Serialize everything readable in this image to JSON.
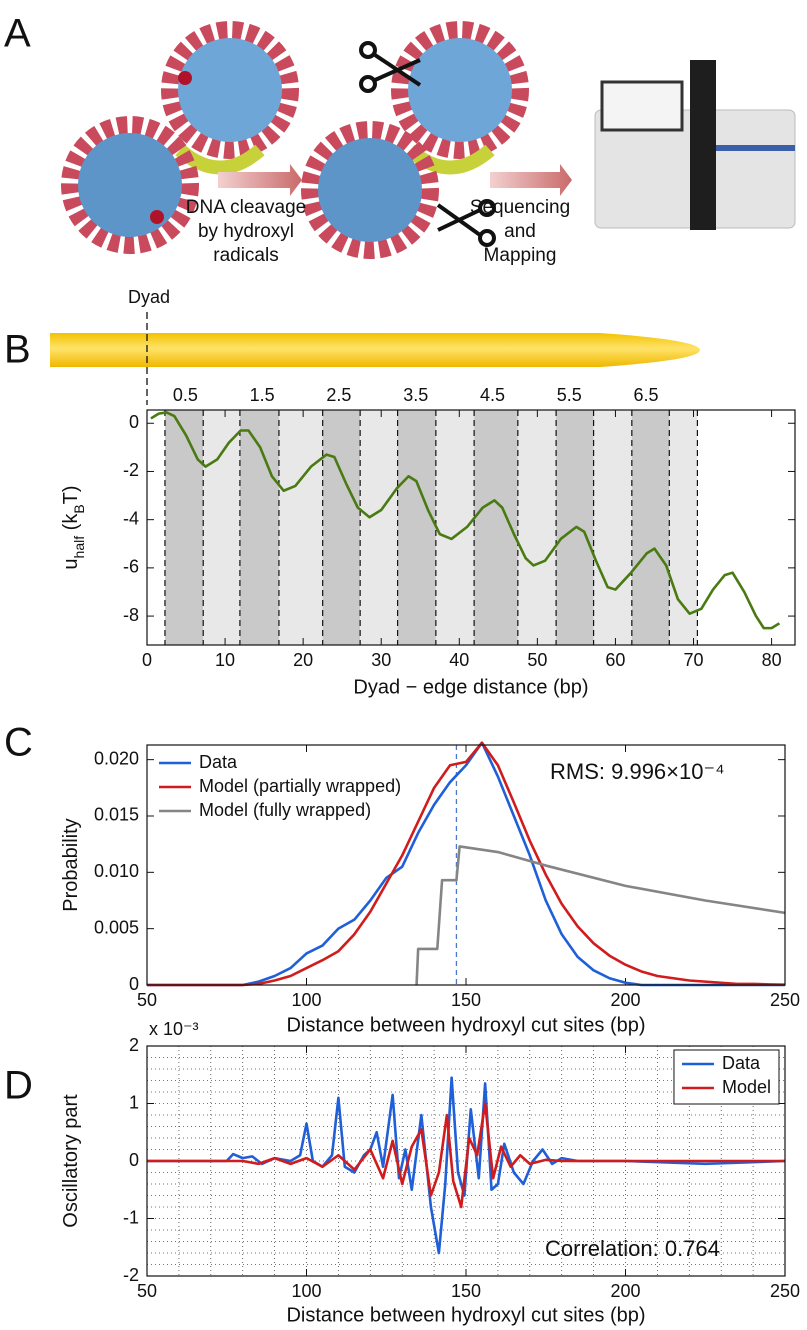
{
  "illustration": {
    "panel": "A",
    "captions": [
      [
        "DNA cleavage",
        "by hydroxyl",
        "radicals"
      ],
      [
        "Sequencing",
        "and",
        "Mapping"
      ]
    ]
  },
  "chart_data": [
    {
      "type": "line",
      "panel": "B",
      "marker_label": "Dyad",
      "xlabel": "Dyad − edge distance (bp)",
      "ylabel": [
        {
          "text": "u"
        },
        {
          "text": "half",
          "sub": true
        },
        {
          "text": "  (k"
        },
        {
          "text": "B",
          "sub": true
        },
        {
          "text": "T)"
        }
      ],
      "xlim": [
        0,
        83
      ],
      "xticks": [
        0,
        10,
        20,
        30,
        40,
        50,
        60,
        70,
        80
      ],
      "ylim": [
        -9.2,
        0.55
      ],
      "yticks": [
        -8,
        -6,
        -4,
        -2,
        0
      ],
      "x2lim": [
        0,
        8.44
      ],
      "x2ticks": [
        0.5,
        1.5,
        2.5,
        3.5,
        4.5,
        5.5,
        6.5
      ],
      "band_edges": [
        2.3,
        7.2,
        11.9,
        16.9,
        22.5,
        27.3,
        32.1,
        37.0,
        41.9,
        47.5,
        52.4,
        57.2,
        62.1,
        66.9,
        70.5
      ],
      "band_colors": [
        "#c9c9c9",
        "#e8e8e8"
      ],
      "x": [
        0.5,
        1.5,
        2.5,
        3.5,
        5,
        6.5,
        7.5,
        9,
        10.5,
        12,
        13,
        14.5,
        16,
        17.5,
        19,
        21,
        23,
        24,
        25.5,
        27,
        28.5,
        30,
        32,
        33.5,
        34.5,
        36,
        37.5,
        39,
        41,
        43,
        44.5,
        45.5,
        47,
        48.5,
        49.5,
        51,
        53,
        55,
        56,
        57.5,
        59,
        60,
        62,
        64,
        65,
        66.5,
        68,
        69.5,
        71,
        72.5,
        74,
        75,
        76.5,
        78,
        79,
        80,
        81
      ],
      "series": [
        {
          "color": "#4a7a12",
          "values": [
            0.2,
            0.4,
            0.45,
            0.3,
            -0.5,
            -1.5,
            -1.8,
            -1.5,
            -0.8,
            -0.3,
            -0.3,
            -1.0,
            -2.2,
            -2.8,
            -2.6,
            -1.8,
            -1.3,
            -1.4,
            -2.5,
            -3.5,
            -3.9,
            -3.6,
            -2.7,
            -2.2,
            -2.4,
            -3.6,
            -4.6,
            -4.8,
            -4.3,
            -3.5,
            -3.2,
            -3.5,
            -4.6,
            -5.6,
            -5.9,
            -5.7,
            -4.8,
            -4.3,
            -4.5,
            -5.7,
            -6.8,
            -6.9,
            -6.2,
            -5.4,
            -5.2,
            -5.9,
            -7.3,
            -7.9,
            -7.7,
            -6.9,
            -6.3,
            -6.2,
            -7.0,
            -8.0,
            -8.5,
            -8.5,
            -8.3
          ]
        }
      ]
    },
    {
      "type": "line",
      "panel": "C",
      "xlabel": "Distance between hydroxyl cut sites (bp)",
      "ylabel": [
        {
          "text": "Probability"
        }
      ],
      "xlim": [
        50,
        250
      ],
      "xticks": [
        50,
        100,
        150,
        200,
        250
      ],
      "ylim": [
        0,
        0.0213
      ],
      "yticks": [
        0,
        0.005,
        {
          "value": 0.01,
          "label": "0.010"
        },
        0.015,
        {
          "value": 0.02,
          "label": "0.020"
        }
      ],
      "vline": 147,
      "vline_color": "#4a78c8",
      "annotation": "RMS: 9.996×10⁻⁴",
      "legend": "upper left",
      "series": [
        {
          "name": "Data",
          "color": "#1f5fd8",
          "x": [
            50,
            80,
            85,
            90,
            95,
            100,
            105,
            110,
            115,
            120,
            125,
            130,
            135,
            140,
            145,
            150,
            155,
            160,
            165,
            170,
            175,
            180,
            185,
            190,
            195,
            200,
            205,
            250
          ],
          "values": [
            0,
            0,
            0.0003,
            0.0008,
            0.0015,
            0.0028,
            0.0035,
            0.005,
            0.0058,
            0.0075,
            0.0095,
            0.0105,
            0.0135,
            0.016,
            0.018,
            0.0195,
            0.0215,
            0.0185,
            0.015,
            0.0115,
            0.0075,
            0.0045,
            0.0025,
            0.0013,
            0.0006,
            0.0002,
            0,
            0
          ]
        },
        {
          "name": "Model (partially wrapped)",
          "color": "#d01c1c",
          "x": [
            50,
            80,
            85,
            90,
            95,
            100,
            105,
            110,
            115,
            120,
            125,
            130,
            135,
            140,
            145,
            150,
            155,
            160,
            165,
            170,
            175,
            180,
            185,
            190,
            195,
            200,
            205,
            210,
            215,
            220,
            225,
            230,
            235,
            240,
            245,
            250
          ],
          "values": [
            0,
            0,
            0.0001,
            0.0004,
            0.0008,
            0.0015,
            0.0022,
            0.003,
            0.0045,
            0.0065,
            0.009,
            0.0115,
            0.0145,
            0.0175,
            0.0195,
            0.0198,
            0.0215,
            0.0195,
            0.0162,
            0.0128,
            0.0098,
            0.0072,
            0.0052,
            0.0037,
            0.0026,
            0.0018,
            0.0012,
            0.0008,
            0.0006,
            0.0004,
            0.0003,
            0.0002,
            0.0001,
            0.0001,
            5e-05,
            3e-05
          ]
        },
        {
          "name": "Model (fully wrapped)",
          "color": "#858585",
          "x": [
            134.5,
            135,
            141,
            142.5,
            147,
            148,
            160,
            175,
            200,
            225,
            250
          ],
          "values": [
            0,
            0.0032,
            0.0032,
            0.0093,
            0.0093,
            0.0123,
            0.0118,
            0.0106,
            0.0088,
            0.0075,
            0.0064
          ]
        }
      ]
    },
    {
      "type": "line",
      "panel": "D",
      "xlabel": "Distance between hydroxyl cut sites (bp)",
      "ylabel": [
        {
          "text": "Oscillatory part"
        }
      ],
      "y_multiplier": "x 10⁻³",
      "xlim": [
        50,
        250
      ],
      "xticks": [
        50,
        100,
        150,
        200,
        250
      ],
      "ylim": [
        -2,
        2
      ],
      "yticks": [
        -2,
        -1,
        0,
        1,
        2
      ],
      "grid": true,
      "minor_grid": true,
      "annotation": "Correlation: 0.764",
      "legend": "upper right",
      "legend_box": true,
      "series": [
        {
          "name": "Data",
          "color": "#1f5fd8",
          "x": [
            50,
            75,
            77,
            80,
            83,
            86,
            90,
            95,
            98,
            100,
            102,
            105,
            108,
            110,
            112,
            115,
            118,
            120,
            122,
            124,
            127,
            129,
            131,
            133,
            136,
            139,
            141.5,
            143.5,
            145.5,
            147.5,
            149.5,
            151.5,
            154,
            156,
            158,
            160,
            162,
            165,
            168,
            171,
            174,
            177,
            180,
            185,
            200,
            225,
            250
          ],
          "values": [
            0,
            0,
            0.12,
            0.05,
            0.08,
            -0.05,
            0.05,
            0,
            0.1,
            0.65,
            0,
            -0.1,
            0.1,
            1.1,
            -0.1,
            -0.2,
            0.1,
            0.2,
            0.5,
            -0.1,
            1.15,
            -0.3,
            0.2,
            -0.5,
            0.8,
            -0.8,
            -1.6,
            -0.4,
            1.45,
            -0.2,
            -0.6,
            0.9,
            -0.3,
            1.35,
            -0.5,
            -0.4,
            0.3,
            -0.2,
            -0.4,
            0,
            0.2,
            -0.05,
            0.05,
            0,
            0,
            -0.05,
            0
          ]
        },
        {
          "name": "Model",
          "color": "#d01c1c",
          "x": [
            50,
            80,
            85,
            90,
            95,
            100,
            105,
            110,
            115,
            120,
            124,
            127,
            130,
            133,
            136,
            139,
            141.5,
            144,
            146,
            148.5,
            151,
            153.5,
            156,
            158.5,
            161,
            164,
            167,
            170,
            175,
            180,
            250
          ],
          "values": [
            0,
            0,
            -0.05,
            0.05,
            -0.05,
            0.05,
            -0.1,
            0.1,
            -0.15,
            0.2,
            -0.3,
            0.35,
            -0.4,
            0.25,
            0.55,
            -0.6,
            -0.2,
            0.8,
            -0.35,
            -0.8,
            0.4,
            0.1,
            1.0,
            -0.3,
            0.25,
            -0.1,
            0.1,
            -0.05,
            0.02,
            0,
            0
          ]
        }
      ]
    }
  ]
}
